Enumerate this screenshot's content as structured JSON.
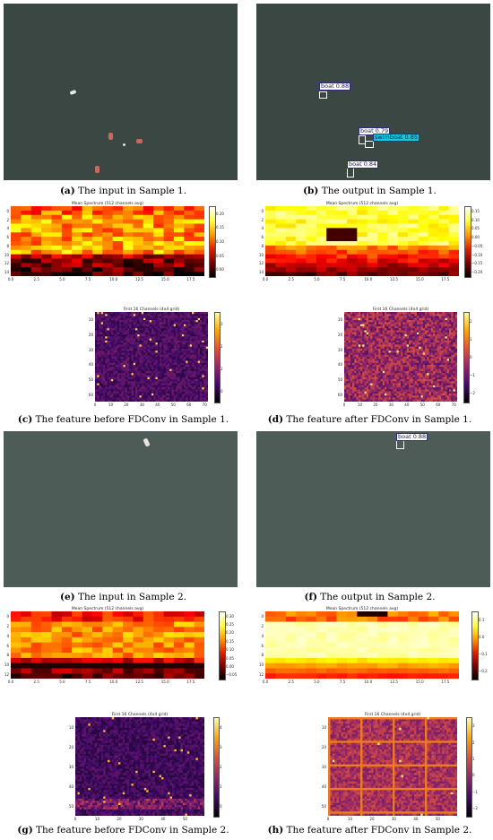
{
  "captions": {
    "a": {
      "label": "(a)",
      "text": " The input in Sample 1."
    },
    "b": {
      "label": "(b)",
      "text": " The output in Sample 1."
    },
    "c": {
      "label": "(c)",
      "text": " The feature before FDConv in Sample 1."
    },
    "d": {
      "label": "(d)",
      "text": " The feature after FDConv in Sample 1."
    },
    "e": {
      "label": "(e)",
      "text": " The input in Sample 2."
    },
    "f": {
      "label": "(f)",
      "text": " The output in Sample 2."
    },
    "g": {
      "label": "(g)",
      "text": " The feature before FDConv in Sample 2."
    },
    "h": {
      "label": "(h)",
      "text": " The feature after FDConv in Sample 2."
    }
  },
  "detections": {
    "sample1": [
      "boat 0.88",
      "boat 0.79",
      "swimboat 0.85",
      "boat 0.84"
    ],
    "sample2": [
      "boat 0.88"
    ]
  },
  "plot_titles": {
    "spectrum": "Mean Spectrum (512 channels avg)",
    "channels": "First 16 Channels (4x4 grid)"
  },
  "ticks": {
    "c_spec_x": [
      "0.0",
      "2.5",
      "5.0",
      "7.5",
      "10.0",
      "12.5",
      "15.0",
      "17.5"
    ],
    "c_spec_y": [
      "0",
      "2",
      "4",
      "6",
      "8",
      "10",
      "12",
      "14"
    ],
    "c_spec_cb": [
      "0.20",
      "0.15",
      "0.10",
      "0.05",
      "0.00"
    ],
    "d_spec_cb": [
      "0.15",
      "0.10",
      "0.05",
      "0.00",
      "−0.05",
      "−0.10",
      "−0.15",
      "−0.20"
    ],
    "s1_ch_x": [
      "0",
      "10",
      "20",
      "30",
      "40",
      "50",
      "60",
      "70"
    ],
    "s1_ch_y": [
      "10",
      "20",
      "30",
      "40",
      "50",
      "60"
    ],
    "c_ch_cb": [
      "3",
      "2",
      "1",
      "0"
    ],
    "d_ch_cb": [
      "2",
      "1",
      "0",
      "−1",
      "−2"
    ],
    "g_spec_x": [
      "0.0",
      "2.5",
      "5.0",
      "7.5",
      "10.0",
      "12.5",
      "15.0",
      "17.5"
    ],
    "g_spec_y": [
      "0",
      "2",
      "4",
      "6",
      "8",
      "10",
      "12"
    ],
    "g_spec_cb": [
      "0.30",
      "0.25",
      "0.20",
      "0.15",
      "0.10",
      "0.05",
      "0.00",
      "−0.05"
    ],
    "h_spec_cb": [
      "0.1",
      "0.0",
      "−0.1",
      "−0.2"
    ],
    "s2_ch_x": [
      "0",
      "10",
      "20",
      "30",
      "40",
      "50"
    ],
    "s2_ch_y": [
      "10",
      "20",
      "30",
      "40",
      "50"
    ],
    "g_ch_cb": [
      "4",
      "3",
      "2",
      "1",
      "0"
    ],
    "h_ch_cb": [
      "3",
      "2",
      "1",
      "0",
      "−1",
      "−2"
    ]
  },
  "colors": {
    "inferno_low": "#000004",
    "inferno_high": "#fcffa4",
    "hot_low": "#000000",
    "hot_high": "#ffffff"
  }
}
